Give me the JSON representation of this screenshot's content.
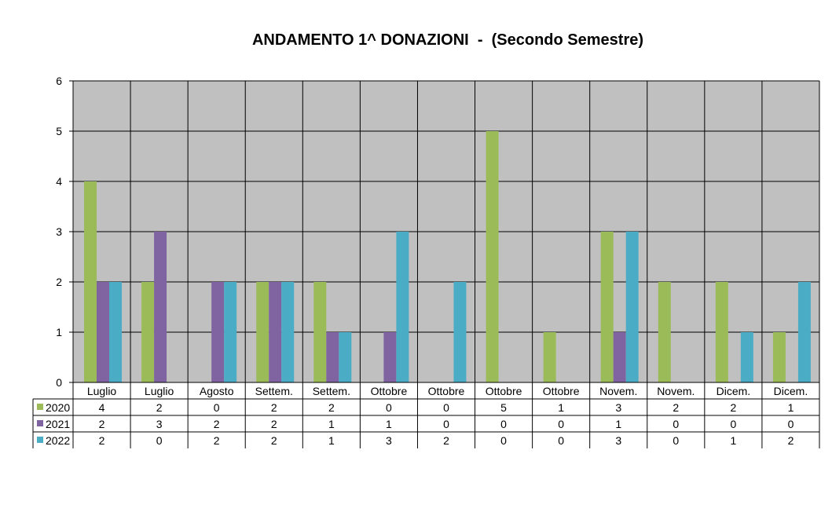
{
  "chart_data": {
    "type": "bar",
    "title": "ANDAMENTO 1^ DONAZIONI  -  (Secondo Semestre)",
    "categories": [
      "Luglio",
      "Luglio",
      "Agosto",
      "Settem.",
      "Settem.",
      "Ottobre",
      "Ottobre",
      "Ottobre",
      "Ottobre",
      "Novem.",
      "Novem.",
      "Dicem.",
      "Dicem."
    ],
    "series": [
      {
        "name": "2020",
        "color": "#9bbb59",
        "values": [
          4,
          2,
          0,
          2,
          2,
          0,
          0,
          5,
          1,
          3,
          2,
          2,
          1
        ]
      },
      {
        "name": "2021",
        "color": "#8064a2",
        "values": [
          2,
          3,
          2,
          2,
          1,
          1,
          0,
          0,
          0,
          1,
          0,
          0,
          0
        ]
      },
      {
        "name": "2022",
        "color": "#4bacc6",
        "values": [
          2,
          0,
          2,
          2,
          1,
          3,
          2,
          0,
          0,
          3,
          0,
          1,
          2
        ]
      }
    ],
    "ylim": [
      0,
      6
    ],
    "yticks": [
      0,
      1,
      2,
      3,
      4,
      5,
      6
    ],
    "grid": true,
    "plot_background": "#c0c0c0",
    "legend_placement": "data-table"
  }
}
